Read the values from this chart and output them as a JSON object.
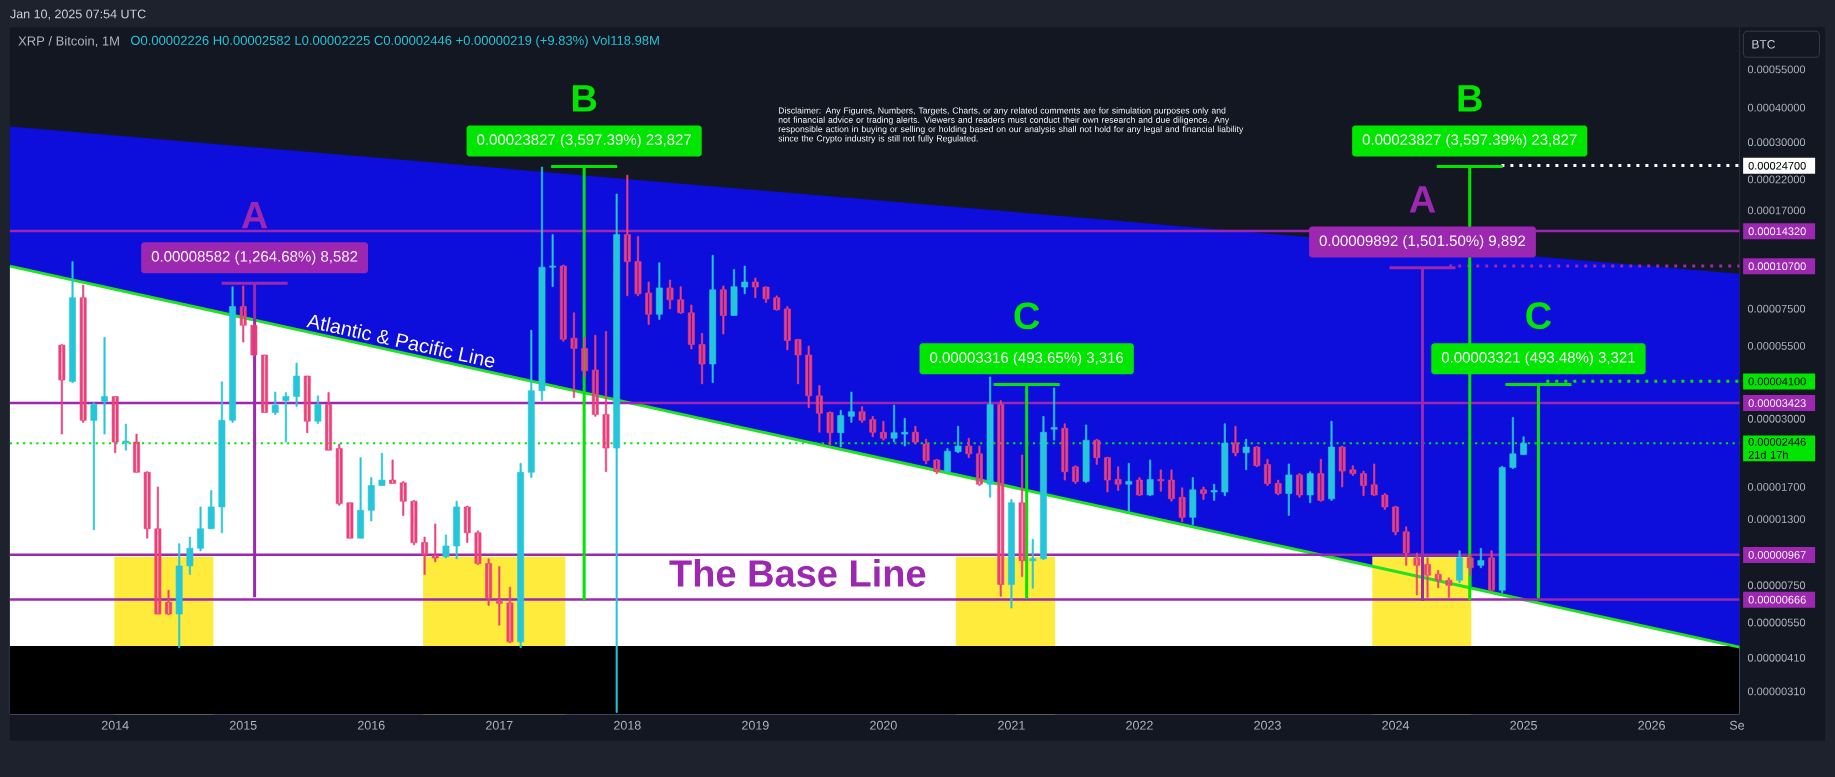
{
  "chart_data": {
    "type": "candlestick",
    "title": "XRP / Bitcoin, 1M",
    "subtitle": "O0.00002226 H0.00002582 L0.00002225 C0.00002446 +0.00000219 (+9.83%) Vol118.98M",
    "ylabel": "BTC",
    "annotations": [
      "Jan 10, 2025 07:54 UTC",
      "Disclaimer: Any Figures, Numbers, Targets, Charts, or any related comments are for simulation purposes only and not financial advice or trading alerts. Viewers and readers must conduct their own research and due diligence. Any responsible action in buying or selling or holding based on our analysis shall not hold for any legal and financial liability since the Crypto industry is still not fully Regulated.",
      "The Base Line",
      "0.00008582 (1,264.68%) 8,582",
      "A",
      "0.00023827 (3,597.39%) 23,827",
      "B",
      "0.00003316 (493.65%) 3,316",
      "C",
      "0.00009892 (1,501.50%) 9,892",
      "A",
      "0.00023827 (3,597.39%) 23,827",
      "B",
      "0.00003321 (493.48%) 3,321",
      "C"
    ],
    "log": true,
    "xlim": [
      "2013-03-05",
      "2026-09-08"
    ],
    "xticks": [
      {
        "value": "2014",
        "label": "2014"
      },
      {
        "value": "2015",
        "label": "2015"
      },
      {
        "value": "2016",
        "label": "2016"
      },
      {
        "value": "2017",
        "label": "2017"
      },
      {
        "value": "2018",
        "label": "2018"
      },
      {
        "value": "2019",
        "label": "2019"
      },
      {
        "value": "2020",
        "label": "2020"
      },
      {
        "value": "2021",
        "label": "2021"
      },
      {
        "value": "2022",
        "label": "2022"
      },
      {
        "value": "2023",
        "label": "2023"
      },
      {
        "value": "2024",
        "label": "2024"
      },
      {
        "value": "2025",
        "label": "2025"
      },
      {
        "value": "2026",
        "label": "2026"
      },
      {
        "value": "2026-09",
        "label": "Se"
      }
    ],
    "ylim": [
      2.56e-06,
      0.000781
    ],
    "yticks": [
      {
        "value": 0.00055,
        "label": "0.00055000"
      },
      {
        "value": 0.0004,
        "label": "0.00040000"
      },
      {
        "value": 0.0003,
        "label": "0.00030000"
      },
      {
        "value": 0.00022,
        "label": "0.00022000"
      },
      {
        "value": 0.00017,
        "label": "0.00017000"
      },
      {
        "value": 7.5e-05,
        "label": "0.00007500"
      },
      {
        "value": 5.5e-05,
        "label": "0.00005500"
      },
      {
        "value": 3e-05,
        "label": "0.00003000"
      },
      {
        "value": 1.7e-05,
        "label": "0.00001700"
      },
      {
        "value": 1.3e-05,
        "label": "0.00001300"
      },
      {
        "value": 7.5e-06,
        "label": "0.00000750"
      },
      {
        "value": 5.5e-06,
        "label": "0.00000550"
      },
      {
        "value": 4.1e-06,
        "label": "0.00000410"
      },
      {
        "value": 3.1e-06,
        "label": "0.00000310"
      }
    ],
    "x": [
      "2013-08",
      "2013-09",
      "2013-10",
      "2013-11",
      "2013-12",
      "2014-01",
      "2014-02",
      "2014-03",
      "2014-04",
      "2014-05",
      "2014-06",
      "2014-07",
      "2014-08",
      "2014-09",
      "2014-10",
      "2014-11",
      "2014-12",
      "2015-01",
      "2015-02",
      "2015-03",
      "2015-04",
      "2015-05",
      "2015-06",
      "2015-07",
      "2015-08",
      "2015-09",
      "2015-10",
      "2015-11",
      "2015-12",
      "2016-01",
      "2016-02",
      "2016-03",
      "2016-04",
      "2016-05",
      "2016-06",
      "2016-07",
      "2016-08",
      "2016-09",
      "2016-10",
      "2016-11",
      "2016-12",
      "2017-01",
      "2017-02",
      "2017-03",
      "2017-04",
      "2017-05",
      "2017-06",
      "2017-07",
      "2017-08",
      "2017-09",
      "2017-10",
      "2017-11",
      "2017-12",
      "2018-01",
      "2018-02",
      "2018-03",
      "2018-04",
      "2018-05",
      "2018-06",
      "2018-07",
      "2018-08",
      "2018-09",
      "2018-10",
      "2018-11",
      "2018-12",
      "2019-01",
      "2019-02",
      "2019-03",
      "2019-04",
      "2019-05",
      "2019-06",
      "2019-07",
      "2019-08",
      "2019-09",
      "2019-10",
      "2019-11",
      "2019-12",
      "2020-01",
      "2020-02",
      "2020-03",
      "2020-04",
      "2020-05",
      "2020-06",
      "2020-07",
      "2020-08",
      "2020-09",
      "2020-10",
      "2020-11",
      "2020-12",
      "2021-01",
      "2021-02",
      "2021-03",
      "2021-04",
      "2021-05",
      "2021-06",
      "2021-07",
      "2021-08",
      "2021-09",
      "2021-10",
      "2021-11",
      "2021-12",
      "2022-01",
      "2022-02",
      "2022-03",
      "2022-04",
      "2022-05",
      "2022-06",
      "2022-07",
      "2022-08",
      "2022-09",
      "2022-10",
      "2022-11",
      "2022-12",
      "2023-01",
      "2023-02",
      "2023-03",
      "2023-04",
      "2023-05",
      "2023-06",
      "2023-07",
      "2023-08",
      "2023-09",
      "2023-10",
      "2023-11",
      "2023-12",
      "2024-01",
      "2024-02",
      "2024-03",
      "2024-04",
      "2024-05",
      "2024-06",
      "2024-07",
      "2024-08",
      "2024-09",
      "2024-10",
      "2024-11",
      "2024-12",
      "2025-01"
    ],
    "ohlc": [
      [
        5.54e-05,
        5.57e-05,
        2.64e-05,
        4.14e-05
      ],
      [
        4.09e-05,
        0.000111,
        4.05e-05,
        8.22e-05
      ],
      [
        8.22e-05,
        9.13e-05,
        2.91e-05,
        2.96e-05
      ],
      [
        2.96e-05,
        3.43e-05,
        1.19e-05,
        3.38e-05
      ],
      [
        3.47e-05,
        5.91e-05,
        2.64e-05,
        3.61e-05
      ],
      [
        3.61e-05,
        3.61e-05,
        2.26e-05,
        2.47e-05
      ],
      [
        2.46e-05,
        2.87e-05,
        2.31e-05,
        2.49e-05
      ],
      [
        2.47e-05,
        2.64e-05,
        1.92e-05,
        1.92e-05
      ],
      [
        1.92e-05,
        1.93e-05,
        1.11e-05,
        1.2e-05
      ],
      [
        1.2e-05,
        1.7e-05,
        5.9e-06,
        5.9e-06
      ],
      [
        6.51e-06,
        7.19e-06,
        5.86e-06,
        5.9e-06
      ],
      [
        5.9e-06,
        1.06e-05,
        4.46e-06,
        8.81e-06
      ],
      [
        8.81e-06,
        1.12e-05,
        8.2e-06,
        1.02e-05
      ],
      [
        1.02e-05,
        1.44e-05,
        9.98e-06,
        1.2e-05
      ],
      [
        1.2e-05,
        1.65e-05,
        1.2e-05,
        1.44e-05
      ],
      [
        1.44e-05,
        4.08e-05,
        1.16e-05,
        2.96e-05
      ],
      [
        2.96e-05,
        9.01e-05,
        2.91e-05,
        7.64e-05
      ],
      [
        7.64e-05,
        9.07e-05,
        5.68e-05,
        6.53e-05
      ],
      [
        6.53e-05,
        6.57e-05,
        5.05e-05,
        5.1e-05
      ],
      [
        5.1e-05,
        5.1e-05,
        3.16e-05,
        3.16e-05
      ],
      [
        3.16e-05,
        3.75e-05,
        3.11e-05,
        3.36e-05
      ],
      [
        3.49e-05,
        3.73e-05,
        2.47e-05,
        3.61e-05
      ],
      [
        3.61e-05,
        4.77e-05,
        3.32e-05,
        4.28e-05
      ],
      [
        4.28e-05,
        4.28e-05,
        2.67e-05,
        2.94e-05
      ],
      [
        2.94e-05,
        3.63e-05,
        2.88e-05,
        3.38e-05
      ],
      [
        3.38e-05,
        3.73e-05,
        2.31e-05,
        2.31e-05
      ],
      [
        2.34e-05,
        2.43e-05,
        1.46e-05,
        1.48e-05
      ],
      [
        1.49e-05,
        1.49e-05,
        1.11e-05,
        1.11e-05
      ],
      [
        1.11e-05,
        2.17e-05,
        1.11e-05,
        1.4e-05
      ],
      [
        1.4e-05,
        1.84e-05,
        1.28e-05,
        1.72e-05
      ],
      [
        1.72e-05,
        2.25e-05,
        1.72e-05,
        1.8e-05
      ],
      [
        1.8e-05,
        2.13e-05,
        1.75e-05,
        1.75e-05
      ],
      [
        1.76e-05,
        1.78e-05,
        1.34e-05,
        1.51e-05
      ],
      [
        1.51e-05,
        1.52e-05,
        1.05e-05,
        1.07e-05
      ],
      [
        1.07e-05,
        1.12e-05,
        8.2e-06,
        9.66e-06
      ],
      [
        9.6e-06,
        1.25e-05,
        9.11e-06,
        9.41e-06
      ],
      [
        9.51e-06,
        1.14e-05,
        9.41e-06,
        1.04e-05
      ],
      [
        1.04e-05,
        1.51e-05,
        9.35e-06,
        1.44e-05
      ],
      [
        1.44e-05,
        1.45e-05,
        1.07e-05,
        1.16e-05
      ],
      [
        1.16e-05,
        1.18e-05,
        8.9e-06,
        8.99e-06
      ],
      [
        8.99e-06,
        9.35e-06,
        6.34e-06,
        6.73e-06
      ],
      [
        6.55e-06,
        8.76e-06,
        5.38e-06,
        6.45e-06
      ],
      [
        6.47e-06,
        7.38e-06,
        4.65e-06,
        4.68e-06
      ],
      [
        4.68e-06,
        2.07e-05,
        4.46e-06,
        1.92e-05
      ],
      [
        1.92e-05,
        6.27e-05,
        1.84e-05,
        3.79e-05
      ],
      [
        3.79e-05,
        0.000244,
        3.49e-05,
        0.000106
      ],
      [
        0.000106,
        0.000139,
        9.01e-05,
        0.000107
      ],
      [
        0.000107,
        0.000108,
        5.72e-05,
        5.82e-05
      ],
      [
        5.87e-05,
        7.25e-05,
        3.58e-05,
        5.39e-05
      ],
      [
        5.39e-05,
        5.91e-05,
        4.25e-05,
        4.47e-05
      ],
      [
        4.5e-05,
        6.01e-05,
        3.06e-05,
        3.11e-05
      ],
      [
        3.11e-05,
        6.21e-05,
        1.93e-05,
        2.35e-05
      ],
      [
        2.35e-05,
        0.000195,
        2.6e-06,
        0.000139
      ],
      [
        0.000139,
        0.000228,
        8.35e-05,
        0.000111
      ],
      [
        0.000111,
        0.000137,
        8.35e-05,
        8.49e-05
      ],
      [
        8.55e-05,
        9.37e-05,
        6.57e-05,
        7.16e-05
      ],
      [
        7.16e-05,
        0.00011,
        6.86e-05,
        8.92e-05
      ],
      [
        8.92e-05,
        9.53e-05,
        7.49e-05,
        8.08e-05
      ],
      [
        8.08e-05,
        9.01e-05,
        7.2e-05,
        7.25e-05
      ],
      [
        7.25e-05,
        7.74e-05,
        5.36e-05,
        5.57e-05
      ],
      [
        5.57e-05,
        6.11e-05,
        4.01e-05,
        4.73e-05
      ],
      [
        4.73e-05,
        0.000117,
        4.05e-05,
        8.78e-05
      ],
      [
        8.78e-05,
        9.07e-05,
        6.07e-05,
        7.09e-05
      ],
      [
        7.09e-05,
        0.000104,
        7.09e-05,
        9.01e-05
      ],
      [
        8.98e-05,
        0.000107,
        8.49e-05,
        9.37e-05
      ],
      [
        9.37e-05,
        9.69e-05,
        8.22e-05,
        8.98e-05
      ],
      [
        8.98e-05,
        9.01e-05,
        7.9e-05,
        8.14e-05
      ],
      [
        8.22e-05,
        8.35e-05,
        7.4e-05,
        7.44e-05
      ],
      [
        7.49e-05,
        7.64e-05,
        5.32e-05,
        5.76e-05
      ],
      [
        5.8e-05,
        5.82e-05,
        4.01e-05,
        5.1e-05
      ],
      [
        5.1e-05,
        5.5e-05,
        3.29e-05,
        3.63e-05
      ],
      [
        3.63e-05,
        3.96e-05,
        2.68e-05,
        3.14e-05
      ],
      [
        3.16e-05,
        3.18e-05,
        2.41e-05,
        2.67e-05
      ],
      [
        2.67e-05,
        3.22e-05,
        2.37e-05,
        3.08e-05
      ],
      [
        3.06e-05,
        3.75e-05,
        2.91e-05,
        3.18e-05
      ],
      [
        3.18e-05,
        3.32e-05,
        2.91e-05,
        2.96e-05
      ],
      [
        2.98e-05,
        3.06e-05,
        2.58e-05,
        2.68e-05
      ],
      [
        2.68e-05,
        2.94e-05,
        2.51e-05,
        2.55e-05
      ],
      [
        2.55e-05,
        3.36e-05,
        2.47e-05,
        2.67e-05
      ],
      [
        2.64e-05,
        3.01e-05,
        2.39e-05,
        2.68e-05
      ],
      [
        2.68e-05,
        2.82e-05,
        2.43e-05,
        2.47e-05
      ],
      [
        2.43e-05,
        2.53e-05,
        2.06e-05,
        2.12e-05
      ],
      [
        2.13e-05,
        2.14e-05,
        1.9e-05,
        1.93e-05
      ],
      [
        1.93e-05,
        2.34e-05,
        1.92e-05,
        2.29e-05
      ],
      [
        2.28e-05,
        2.82e-05,
        2.26e-05,
        2.39e-05
      ],
      [
        2.39e-05,
        2.55e-05,
        2.17e-05,
        2.24e-05
      ],
      [
        2.24e-05,
        2.39e-05,
        1.72e-05,
        1.74e-05
      ],
      [
        1.74e-05,
        4.25e-05,
        1.56e-05,
        3.38e-05
      ],
      [
        3.38e-05,
        3.49e-05,
        6.84e-06,
        7.55e-06
      ],
      [
        7.55e-06,
        1.53e-05,
        6.2e-06,
        1.49e-05
      ],
      [
        1.49e-05,
        2.22e-05,
        8.06e-06,
        9.2e-06
      ],
      [
        9.2e-06,
        1.1e-05,
        7.31e-06,
        9.35e-06
      ],
      [
        9.35e-06,
        3.06e-05,
        9.29e-06,
        2.68e-05
      ],
      [
        2.75e-05,
        3.88e-05,
        2.51e-05,
        2.79e-05
      ],
      [
        2.77e-05,
        2.88e-05,
        1.8e-05,
        1.93e-05
      ],
      [
        2.01e-05,
        2.03e-05,
        1.75e-05,
        1.78e-05
      ],
      [
        1.78e-05,
        2.85e-05,
        1.76e-05,
        2.51e-05
      ],
      [
        2.51e-05,
        2.53e-05,
        2.05e-05,
        2.17e-05
      ],
      [
        2.17e-05,
        2.18e-05,
        1.63e-05,
        1.8e-05
      ],
      [
        1.81e-05,
        2.01e-05,
        1.65e-05,
        1.74e-05
      ],
      [
        1.74e-05,
        2.07e-05,
        1.39e-05,
        1.78e-05
      ],
      [
        1.8e-05,
        1.84e-05,
        1.58e-05,
        1.59e-05
      ],
      [
        1.59e-05,
        2.13e-05,
        1.58e-05,
        1.81e-05
      ],
      [
        1.81e-05,
        1.96e-05,
        1.64e-05,
        1.79e-05
      ],
      [
        1.8e-05,
        1.96e-05,
        1.51e-05,
        1.54e-05
      ],
      [
        1.56e-05,
        1.69e-05,
        1.27e-05,
        1.32e-05
      ],
      [
        1.32e-05,
        1.84e-05,
        1.24e-05,
        1.66e-05
      ],
      [
        1.66e-05,
        1.7e-05,
        1.53e-05,
        1.61e-05
      ],
      [
        1.63e-05,
        1.74e-05,
        1.52e-05,
        1.65e-05
      ],
      [
        1.63e-05,
        2.88e-05,
        1.58e-05,
        2.45e-05
      ],
      [
        2.45e-05,
        2.82e-05,
        2.2e-05,
        2.26e-05
      ],
      [
        2.26e-05,
        2.53e-05,
        1.96e-05,
        2.37e-05
      ],
      [
        2.37e-05,
        2.38e-05,
        2.01e-05,
        2.03e-05
      ],
      [
        2.05e-05,
        2.14e-05,
        1.72e-05,
        1.75e-05
      ],
      [
        1.75e-05,
        1.8e-05,
        1.59e-05,
        1.61e-05
      ],
      [
        1.61e-05,
        2.06e-05,
        1.34e-05,
        1.88e-05
      ],
      [
        1.88e-05,
        1.9e-05,
        1.56e-05,
        1.59e-05
      ],
      [
        1.59e-05,
        1.93e-05,
        1.49e-05,
        1.9e-05
      ],
      [
        1.9e-05,
        2.14e-05,
        1.51e-05,
        1.52e-05
      ],
      [
        1.54e-05,
        2.94e-05,
        1.52e-05,
        2.37e-05
      ],
      [
        2.37e-05,
        2.39e-05,
        1.7e-05,
        1.94e-05
      ],
      [
        1.96e-05,
        2.03e-05,
        1.87e-05,
        1.9e-05
      ],
      [
        1.9e-05,
        1.94e-05,
        1.58e-05,
        1.72e-05
      ],
      [
        1.73e-05,
        2.06e-05,
        1.58e-05,
        1.59e-05
      ],
      [
        1.59e-05,
        1.61e-05,
        1.41e-05,
        1.44e-05
      ],
      [
        1.44e-05,
        1.45e-05,
        1.14e-05,
        1.17e-05
      ],
      [
        1.17e-05,
        1.22e-05,
        8.85e-06,
        9.81e-06
      ],
      [
        9.42e-06,
        9.81e-06,
        6.91e-06,
        8.85e-06
      ],
      [
        8.92e-06,
        9.42e-06,
        6.77e-06,
        8.15e-06
      ],
      [
        8.22e-06,
        8.49e-06,
        7.35e-06,
        7.82e-06
      ],
      [
        7.82e-06,
        7.98e-06,
        6.77e-06,
        7.5e-06
      ],
      [
        7.82e-06,
        1e-05,
        7.66e-06,
        9.42e-06
      ],
      [
        9.42e-06,
        9.69e-06,
        8.15e-06,
        8.67e-06
      ],
      [
        8.85e-06,
        1.02e-05,
        8.67e-06,
        9.22e-06
      ],
      [
        9.42e-06,
        1e-05,
        7.14e-06,
        7.2e-06
      ],
      [
        7.2e-06,
        2.02e-05,
        7.05e-06,
        2e-05
      ],
      [
        2e-05,
        3.03e-05,
        1.98e-05,
        2.24e-05
      ],
      [
        2.226e-05,
        2.582e-05,
        2.225e-05,
        2.446e-05
      ]
    ],
    "colors": [
      "#ec407a",
      "#26c6da",
      "#ec407a",
      "#26c6da",
      "#26c6da",
      "#ec407a",
      "#26c6da",
      "#ec407a",
      "#ec407a",
      "#ec407a",
      "#ec407a",
      "#26c6da",
      "#26c6da",
      "#26c6da",
      "#26c6da",
      "#26c6da",
      "#26c6da",
      "#ec407a",
      "#ec407a",
      "#ec407a",
      "#26c6da",
      "#26c6da",
      "#26c6da",
      "#ec407a",
      "#26c6da",
      "#ec407a",
      "#ec407a",
      "#ec407a",
      "#26c6da",
      "#26c6da",
      "#26c6da",
      "#ec407a",
      "#ec407a",
      "#ec407a",
      "#ec407a",
      "#ec407a",
      "#26c6da",
      "#26c6da",
      "#ec407a",
      "#ec407a",
      "#ec407a",
      "#ec407a",
      "#ec407a",
      "#26c6da",
      "#26c6da",
      "#26c6da",
      "#26c6da",
      "#ec407a",
      "#ec407a",
      "#ec407a",
      "#ec407a",
      "#ec407a",
      "#26c6da",
      "#ec407a",
      "#ec407a",
      "#ec407a",
      "#26c6da",
      "#ec407a",
      "#ec407a",
      "#ec407a",
      "#ec407a",
      "#26c6da",
      "#ec407a",
      "#26c6da",
      "#26c6da",
      "#ec407a",
      "#ec407a",
      "#ec407a",
      "#ec407a",
      "#ec407a",
      "#ec407a",
      "#ec407a",
      "#ec407a",
      "#26c6da",
      "#26c6da",
      "#ec407a",
      "#ec407a",
      "#ec407a",
      "#26c6da",
      "#26c6da",
      "#ec407a",
      "#ec407a",
      "#ec407a",
      "#26c6da",
      "#26c6da",
      "#ec407a",
      "#ec407a",
      "#26c6da",
      "#ec407a",
      "#26c6da",
      "#ec407a",
      "#26c6da",
      "#26c6da",
      "#26c6da",
      "#ec407a",
      "#ec407a",
      "#26c6da",
      "#ec407a",
      "#ec407a",
      "#ec407a",
      "#26c6da",
      "#ec407a",
      "#26c6da",
      "#ec407a",
      "#ec407a",
      "#ec407a",
      "#26c6da",
      "#ec407a",
      "#26c6da",
      "#26c6da",
      "#ec407a",
      "#26c6da",
      "#ec407a",
      "#ec407a",
      "#ec407a",
      "#26c6da",
      "#ec407a",
      "#26c6da",
      "#ec407a",
      "#26c6da",
      "#ec407a",
      "#ec407a",
      "#ec407a",
      "#ec407a",
      "#ec407a",
      "#ec407a",
      "#ec407a",
      "#ec407a",
      "#ec407a",
      "#ec407a",
      "#ec407a",
      "#26c6da",
      "#ec407a",
      "#26c6da",
      "#ec407a",
      "#26c6da",
      "#26c6da",
      "#26c6da"
    ],
    "series": [
      {
        "type": "area",
        "color": "#0d0ddc",
        "x": [
          "2013-03-05",
          "2026-09-08"
        ],
        "values": [
          0.000342,
          0.0001003
        ]
      },
      {
        "type": "area",
        "name": "Atlantic & Pacific Line",
        "color": "#22e022",
        "colors": [
          "#ffffff",
          "#ffffff",
          "#ffffff"
        ],
        "x": [
          "2013-03-05",
          "2020",
          "2026-09-08"
        ],
        "values": [
          0.0001069,
          2.15e-05,
          4.48e-06
        ]
      },
      {
        "type": "area",
        "color": "#ffeb3b",
        "x": [
          "2013-12-29",
          "2014-10-07",
          "2015-07-01",
          "2016-05-27",
          "2017-07-07",
          "2019-01-01",
          "2020-07-25",
          "2021-05-04",
          "2022-07-01",
          "2023-10-26",
          "2024-08-04"
        ],
        "values": [
          9.5e-06,
          9.5e-06,
          null,
          9.5e-06,
          9.5e-06,
          null,
          9.5e-06,
          9.5e-06,
          null,
          9.5e-06,
          9.5e-06
        ]
      },
      {
        "type": "line",
        "color": "#ffffff",
        "line_style": "dotted",
        "x": [
          "2024-10-29",
          "2026-09-08"
        ],
        "values": [
          0.000247,
          0.000247
        ],
        "value_labels": [
          null,
          "0.00024700"
        ]
      },
      {
        "type": "line",
        "color": "#9c27b0",
        "line_style": "dotted",
        "x": [
          "2024-06-02",
          "2026-09-08"
        ],
        "values": [
          0.000107,
          0.000107
        ],
        "value_labels": [
          null,
          "0.00010700"
        ]
      },
      {
        "type": "line",
        "color": "#00e600",
        "line_style": "dotted",
        "x": [
          "2025-03-05",
          "2026-09-08"
        ],
        "values": [
          4.1e-05,
          4.1e-05
        ],
        "value_labels": [
          null,
          "0.00004100"
        ]
      },
      {
        "type": "line",
        "color": "#9c27b0",
        "x": [
          "2015-02-03",
          "2015-02-03"
        ],
        "values": [
          6.79e-06,
          9.261e-05
        ]
      },
      {
        "type": "line",
        "color": "#00e600",
        "x": [
          "2017-08-30",
          "2017-08-30"
        ],
        "values": [
          6.62e-06,
          0.00024489
        ]
      },
      {
        "type": "line",
        "color": "#00e600",
        "x": [
          "2021-02-14",
          "2021-02-14"
        ],
        "values": [
          6.72e-06,
          3.988e-05
        ]
      },
      {
        "type": "line",
        "color": "#9c27b0",
        "x": [
          "2024-03-17",
          "2024-03-17"
        ],
        "values": [
          6.59e-06,
          0.00010551
        ]
      },
      {
        "type": "line",
        "color": "#00e600",
        "x": [
          "2024-07-30",
          "2024-07-30"
        ],
        "values": [
          6.62e-06,
          0.00024489
        ]
      },
      {
        "type": "line",
        "color": "#00e600",
        "x": [
          "2025-02-13",
          "2025-02-13"
        ],
        "values": [
          6.73e-06,
          3.994e-05
        ]
      }
    ],
    "bands": [
      {
        "axis": "y",
        "from": 2.56e-06,
        "to": 4.52e-06,
        "color": "#000000"
      }
    ],
    "ref_lines": [
      {
        "axis": "y",
        "value": 0.0001432,
        "label": "0.00014320",
        "color": "#9c27b0"
      },
      {
        "axis": "y",
        "value": 3.423e-05,
        "label": "0.00003423",
        "color": "#9c27b0"
      },
      {
        "axis": "y",
        "value": 2.446e-05,
        "label": "0.00002446 21d 17h",
        "color": "#00e600",
        "line_style": "dotted"
      },
      {
        "axis": "y",
        "value": 9.67e-06,
        "label": "0.00000967",
        "color": "#9c27b0"
      },
      {
        "axis": "y",
        "value": 6.66e-06,
        "label": "0.00000666",
        "color": "#9c27b0"
      }
    ]
  }
}
